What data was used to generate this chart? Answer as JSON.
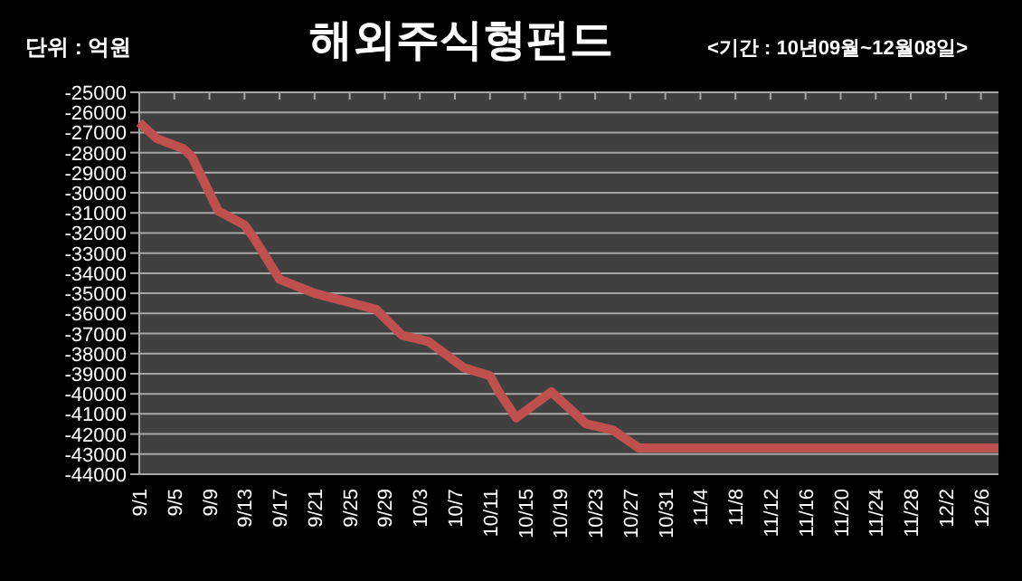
{
  "chart_data": {
    "type": "line",
    "title": "해외주식형펀드",
    "subtitle": "<기간 : 10년09월~12월08일>",
    "ylabel": "단위 : 억원",
    "series": [
      {
        "color": "#c0504d",
        "x": [
          "--09-01",
          "--09-03",
          "--09-06",
          "--09-07",
          "--09-10",
          "--09-13",
          "--09-14",
          "--09-17",
          "--09-21",
          "--09-28",
          "--10-01",
          "--10-04",
          "--10-08",
          "--10-11",
          "--10-12",
          "--10-14",
          "--10-18",
          "--10-22",
          "--10-25",
          "--10-28",
          "--12-08"
        ],
        "values": [
          -26500,
          -27300,
          -27800,
          -28200,
          -30900,
          -31600,
          -32200,
          -34300,
          -35000,
          -35800,
          -37100,
          -37400,
          -38700,
          -39100,
          -39900,
          -41200,
          -39900,
          -41500,
          -41800,
          -42700,
          -42700
        ]
      }
    ],
    "xlim": [
      "--09-01",
      "--12-08"
    ],
    "xticks": [
      {
        "value": "--09-01",
        "label": "9/1"
      },
      {
        "value": "--09-05",
        "label": "9/5"
      },
      {
        "value": "--09-09",
        "label": "9/9"
      },
      {
        "value": "--09-13",
        "label": "9/13"
      },
      {
        "value": "--09-17",
        "label": "9/17"
      },
      {
        "value": "--09-21",
        "label": "9/21"
      },
      {
        "value": "--09-25",
        "label": "9/25"
      },
      {
        "value": "--09-29",
        "label": "9/29"
      },
      {
        "value": "--10-03",
        "label": "10/3"
      },
      {
        "value": "--10-07",
        "label": "10/7"
      },
      {
        "value": "--10-11",
        "label": "10/11"
      },
      {
        "value": "--10-15",
        "label": "10/15"
      },
      {
        "value": "--10-19",
        "label": "10/19"
      },
      {
        "value": "--10-23",
        "label": "10/23"
      },
      {
        "value": "--10-27",
        "label": "10/27"
      },
      {
        "value": "--10-31",
        "label": "10/31"
      },
      {
        "value": "--11-04",
        "label": "11/4"
      },
      {
        "value": "--11-08",
        "label": "11/8"
      },
      {
        "value": "--11-12",
        "label": "11/12"
      },
      {
        "value": "--11-16",
        "label": "11/16"
      },
      {
        "value": "--11-20",
        "label": "11/20"
      },
      {
        "value": "--11-24",
        "label": "11/24"
      },
      {
        "value": "--11-28",
        "label": "11/28"
      },
      {
        "value": "--12-02",
        "label": "12/2"
      },
      {
        "value": "--12-06",
        "label": "12/6"
      }
    ],
    "ylim": [
      -44000,
      -25000
    ],
    "yticks": [
      -44000,
      -43000,
      -42000,
      -41000,
      -40000,
      -39000,
      -38000,
      -37000,
      -36000,
      -35000,
      -34000,
      -33000,
      -32000,
      -31000,
      -30000,
      -29000,
      -28000,
      -27000,
      -26000,
      -25000
    ],
    "grid": "y",
    "marker": "none",
    "line_style": "solid"
  }
}
